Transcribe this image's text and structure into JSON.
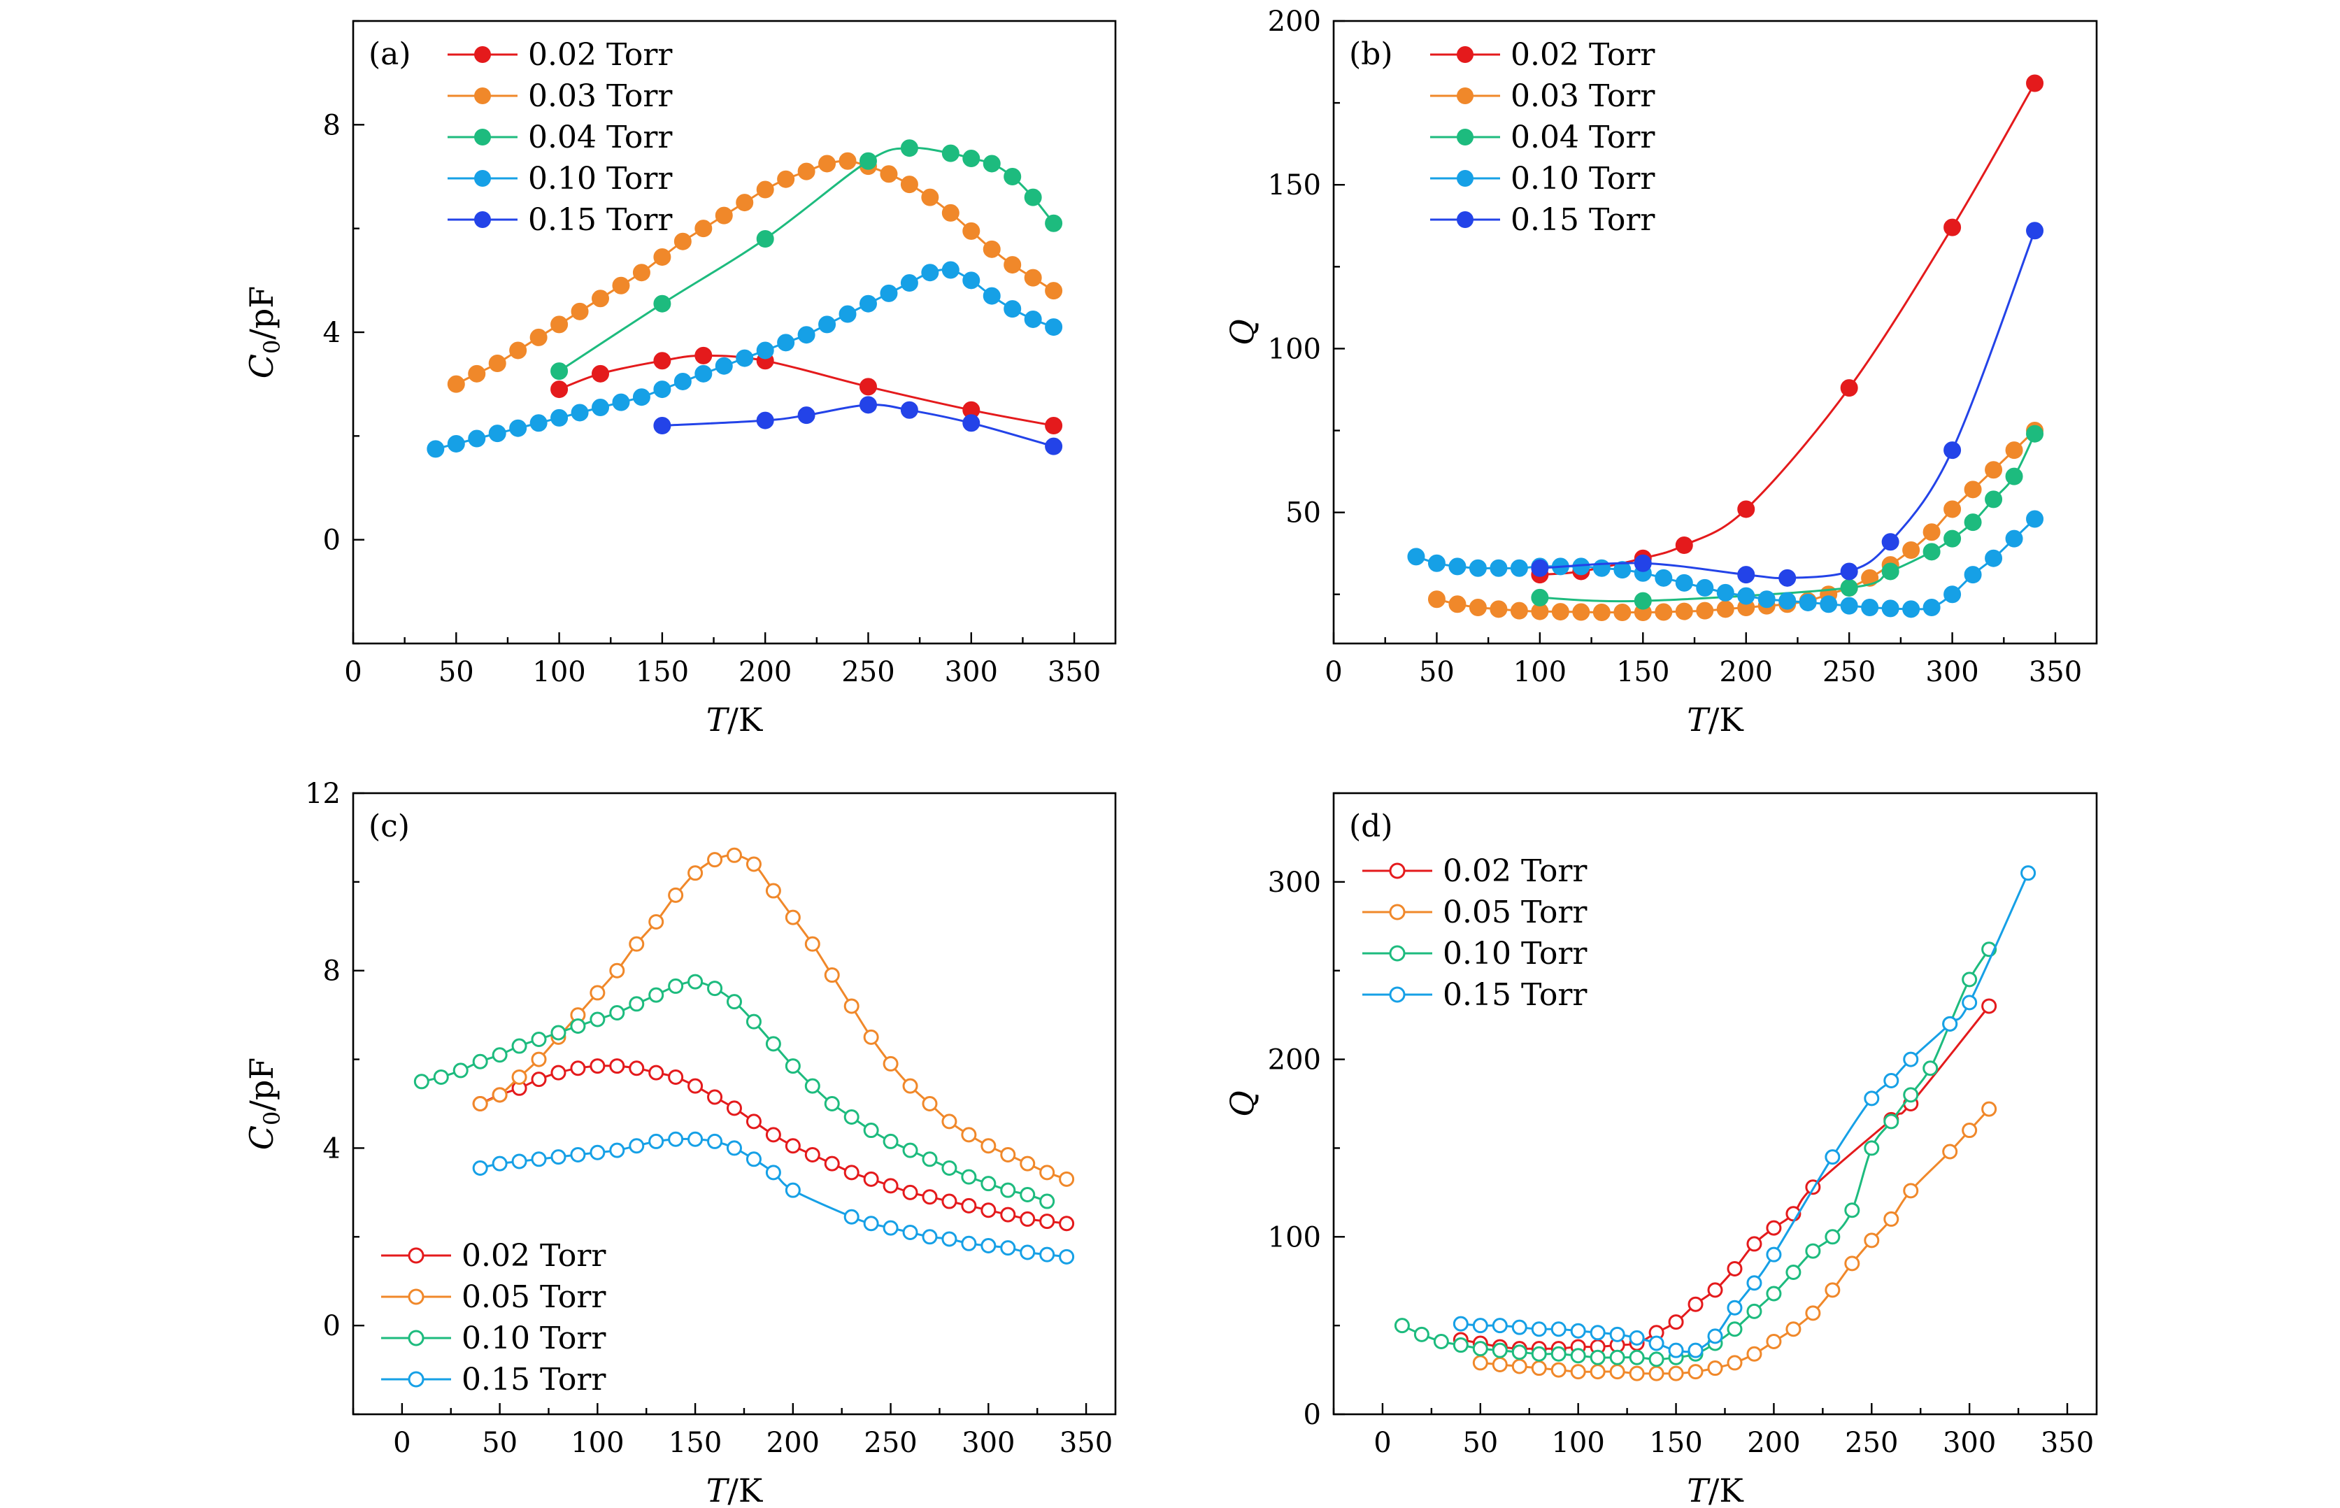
{
  "chart_data": [
    {
      "panel": "(a)",
      "type": "line",
      "marker": "filled",
      "xlabel": "T/K",
      "ylabel": "C0/pF",
      "xlim": [
        0,
        370
      ],
      "ylim": [
        -2,
        10
      ],
      "xticks": [
        0,
        50,
        100,
        150,
        200,
        250,
        300,
        350
      ],
      "yticks": [
        0,
        4,
        8
      ],
      "legend_position": "top-left",
      "series": [
        {
          "name": "0.02 Torr",
          "color": "#e41a1c",
          "x": [
            100,
            120,
            150,
            170,
            200,
            250,
            300,
            340
          ],
          "y": [
            2.9,
            3.2,
            3.45,
            3.55,
            3.45,
            2.95,
            2.5,
            2.2
          ]
        },
        {
          "name": "0.03 Torr",
          "color": "#f0882a",
          "x": [
            50,
            60,
            70,
            80,
            90,
            100,
            110,
            120,
            130,
            140,
            150,
            160,
            170,
            180,
            190,
            200,
            210,
            220,
            230,
            240,
            250,
            260,
            270,
            280,
            290,
            300,
            310,
            320,
            330,
            340
          ],
          "y": [
            3.0,
            3.2,
            3.4,
            3.65,
            3.9,
            4.15,
            4.4,
            4.65,
            4.9,
            5.15,
            5.45,
            5.75,
            6.0,
            6.25,
            6.5,
            6.75,
            6.95,
            7.1,
            7.25,
            7.3,
            7.2,
            7.05,
            6.85,
            6.6,
            6.3,
            5.95,
            5.6,
            5.3,
            5.05,
            4.8
          ]
        },
        {
          "name": "0.04 Torr",
          "color": "#1dbb7e",
          "x": [
            100,
            150,
            200,
            250,
            270,
            290,
            300,
            310,
            320,
            330,
            340
          ],
          "y": [
            3.25,
            4.55,
            5.8,
            7.3,
            7.55,
            7.45,
            7.35,
            7.25,
            7.0,
            6.6,
            6.1
          ]
        },
        {
          "name": "0.10 Torr",
          "color": "#16a0e6",
          "x": [
            40,
            50,
            60,
            70,
            80,
            90,
            100,
            110,
            120,
            130,
            140,
            150,
            160,
            170,
            180,
            190,
            200,
            210,
            220,
            230,
            240,
            250,
            260,
            270,
            280,
            290,
            300,
            310,
            320,
            330,
            340
          ],
          "y": [
            1.75,
            1.85,
            1.95,
            2.05,
            2.15,
            2.25,
            2.35,
            2.45,
            2.55,
            2.65,
            2.75,
            2.9,
            3.05,
            3.2,
            3.35,
            3.5,
            3.65,
            3.8,
            3.95,
            4.15,
            4.35,
            4.55,
            4.75,
            4.95,
            5.15,
            5.2,
            5.0,
            4.7,
            4.45,
            4.25,
            4.1
          ]
        },
        {
          "name": "0.15 Torr",
          "color": "#2343e8",
          "x": [
            150,
            200,
            220,
            250,
            270,
            300,
            340
          ],
          "y": [
            2.2,
            2.3,
            2.4,
            2.6,
            2.5,
            2.25,
            1.8
          ]
        }
      ]
    },
    {
      "panel": "(b)",
      "type": "line",
      "marker": "filled",
      "xlabel": "T/K",
      "ylabel": "Q",
      "xlim": [
        0,
        370
      ],
      "ylim": [
        10,
        200
      ],
      "xticks": [
        0,
        50,
        100,
        150,
        200,
        250,
        300,
        350
      ],
      "yticks": [
        50,
        100,
        150,
        200
      ],
      "legend_position": "top-left",
      "series": [
        {
          "name": "0.02 Torr",
          "color": "#e41a1c",
          "x": [
            100,
            120,
            150,
            170,
            200,
            250,
            300,
            340
          ],
          "y": [
            31,
            32,
            36,
            40,
            51,
            88,
            137,
            181
          ]
        },
        {
          "name": "0.03 Torr",
          "color": "#f0882a",
          "x": [
            50,
            60,
            70,
            80,
            90,
            100,
            110,
            120,
            130,
            140,
            150,
            160,
            170,
            180,
            190,
            200,
            210,
            220,
            230,
            240,
            250,
            260,
            270,
            280,
            290,
            300,
            310,
            320,
            330,
            340
          ],
          "y": [
            23.5,
            22,
            21,
            20.5,
            20,
            19.8,
            19.7,
            19.6,
            19.5,
            19.5,
            19.5,
            19.6,
            19.8,
            20,
            20.5,
            21,
            21.5,
            22,
            23,
            25,
            27,
            30,
            34,
            38.5,
            44,
            51,
            57,
            63,
            69,
            75
          ]
        },
        {
          "name": "0.04 Torr",
          "color": "#1dbb7e",
          "x": [
            100,
            150,
            250,
            270,
            290,
            300,
            310,
            320,
            330,
            340
          ],
          "y": [
            24,
            23,
            27,
            32,
            38,
            42,
            47,
            54,
            61,
            74
          ]
        },
        {
          "name": "0.10 Torr",
          "color": "#16a0e6",
          "x": [
            40,
            50,
            60,
            70,
            80,
            90,
            100,
            110,
            120,
            130,
            140,
            150,
            160,
            170,
            180,
            190,
            200,
            210,
            220,
            230,
            240,
            250,
            260,
            270,
            280,
            290,
            300,
            310,
            320,
            330,
            340
          ],
          "y": [
            36.5,
            34.5,
            33.5,
            33,
            33,
            33,
            33.5,
            33.5,
            33.5,
            33,
            32.5,
            31.5,
            30,
            28.5,
            27,
            25.5,
            24.5,
            23.5,
            23,
            22.5,
            22,
            21.5,
            21,
            20.7,
            20.5,
            21,
            25,
            31,
            36,
            42,
            48
          ]
        },
        {
          "name": "0.15 Torr",
          "color": "#2343e8",
          "x": [
            100,
            150,
            200,
            220,
            250,
            270,
            300,
            340
          ],
          "y": [
            33,
            34.5,
            31,
            30,
            32,
            41,
            69,
            136
          ]
        }
      ]
    },
    {
      "panel": "(c)",
      "type": "line",
      "marker": "open",
      "xlabel": "T/K",
      "ylabel": "C0/pF",
      "xlim": [
        -25,
        365
      ],
      "ylim": [
        -2,
        12
      ],
      "xticks": [
        0,
        50,
        100,
        150,
        200,
        250,
        300,
        350
      ],
      "yticks": [
        0,
        4,
        8,
        12
      ],
      "legend_position": "bottom-left",
      "series": [
        {
          "name": "0.02 Torr",
          "color": "#e41a1c",
          "x": [
            40,
            50,
            60,
            70,
            80,
            90,
            100,
            110,
            120,
            130,
            140,
            150,
            160,
            170,
            180,
            190,
            200,
            210,
            220,
            230,
            240,
            250,
            260,
            270,
            280,
            290,
            300,
            310,
            320,
            330,
            340
          ],
          "y": [
            5.0,
            5.2,
            5.35,
            5.55,
            5.7,
            5.8,
            5.85,
            5.85,
            5.8,
            5.7,
            5.6,
            5.4,
            5.15,
            4.9,
            4.6,
            4.3,
            4.05,
            3.85,
            3.65,
            3.45,
            3.3,
            3.15,
            3.0,
            2.9,
            2.8,
            2.7,
            2.6,
            2.5,
            2.4,
            2.35,
            2.3
          ]
        },
        {
          "name": "0.05 Torr",
          "color": "#f0882a",
          "x": [
            40,
            50,
            60,
            70,
            80,
            90,
            100,
            110,
            120,
            130,
            140,
            150,
            160,
            170,
            180,
            190,
            200,
            210,
            220,
            230,
            240,
            250,
            260,
            270,
            280,
            290,
            300,
            310,
            320,
            330,
            340
          ],
          "y": [
            5.0,
            5.2,
            5.6,
            6.0,
            6.5,
            7.0,
            7.5,
            8.0,
            8.6,
            9.1,
            9.7,
            10.2,
            10.5,
            10.6,
            10.4,
            9.8,
            9.2,
            8.6,
            7.9,
            7.2,
            6.5,
            5.9,
            5.4,
            5.0,
            4.6,
            4.3,
            4.05,
            3.85,
            3.65,
            3.45,
            3.3
          ]
        },
        {
          "name": "0.10 Torr",
          "color": "#1dbb7e",
          "x": [
            10,
            20,
            30,
            40,
            50,
            60,
            70,
            80,
            90,
            100,
            110,
            120,
            130,
            140,
            150,
            160,
            170,
            180,
            190,
            200,
            210,
            220,
            230,
            240,
            250,
            260,
            270,
            280,
            290,
            300,
            310,
            320,
            330
          ],
          "y": [
            5.5,
            5.6,
            5.75,
            5.95,
            6.1,
            6.3,
            6.45,
            6.6,
            6.75,
            6.9,
            7.05,
            7.25,
            7.45,
            7.65,
            7.75,
            7.6,
            7.3,
            6.85,
            6.35,
            5.85,
            5.4,
            5.0,
            4.7,
            4.4,
            4.15,
            3.95,
            3.75,
            3.55,
            3.35,
            3.2,
            3.05,
            2.95,
            2.8
          ]
        },
        {
          "name": "0.15 Torr",
          "color": "#16a0e6",
          "x": [
            40,
            50,
            60,
            70,
            80,
            90,
            100,
            110,
            120,
            130,
            140,
            150,
            160,
            170,
            180,
            190,
            200,
            230,
            240,
            250,
            260,
            270,
            280,
            290,
            300,
            310,
            320,
            330,
            340
          ],
          "y": [
            3.55,
            3.65,
            3.7,
            3.75,
            3.8,
            3.85,
            3.9,
            3.95,
            4.05,
            4.15,
            4.2,
            4.2,
            4.15,
            4.0,
            3.75,
            3.45,
            3.05,
            2.45,
            2.3,
            2.2,
            2.1,
            2.0,
            1.95,
            1.85,
            1.8,
            1.75,
            1.65,
            1.6,
            1.55
          ]
        }
      ]
    },
    {
      "panel": "(d)",
      "type": "line",
      "marker": "open",
      "xlabel": "T/K",
      "ylabel": "Q",
      "xlim": [
        -25,
        365
      ],
      "ylim": [
        0,
        350
      ],
      "xticks": [
        0,
        50,
        100,
        150,
        200,
        250,
        300,
        350
      ],
      "yticks": [
        0,
        100,
        200,
        300
      ],
      "legend_position": "top-left",
      "series": [
        {
          "name": "0.02 Torr",
          "color": "#e41a1c",
          "x": [
            40,
            50,
            60,
            70,
            80,
            90,
            100,
            110,
            120,
            130,
            140,
            150,
            160,
            170,
            180,
            190,
            200,
            210,
            220,
            260,
            270,
            310
          ],
          "y": [
            42,
            40,
            38,
            37,
            37,
            37,
            38,
            38,
            39,
            40,
            46,
            52,
            62,
            70,
            82,
            96,
            105,
            113,
            128,
            166,
            175,
            230
          ]
        },
        {
          "name": "0.05 Torr",
          "color": "#f0882a",
          "x": [
            50,
            60,
            70,
            80,
            90,
            100,
            110,
            120,
            130,
            140,
            150,
            160,
            170,
            180,
            190,
            200,
            210,
            220,
            230,
            240,
            250,
            260,
            270,
            290,
            300,
            310
          ],
          "y": [
            29,
            28,
            27,
            26,
            25,
            24,
            24,
            24,
            23,
            23,
            23,
            24,
            26,
            29,
            34,
            41,
            48,
            57,
            70,
            85,
            98,
            110,
            126,
            148,
            160,
            172
          ]
        },
        {
          "name": "0.10 Torr",
          "color": "#1dbb7e",
          "x": [
            10,
            20,
            30,
            40,
            50,
            60,
            70,
            80,
            90,
            100,
            110,
            120,
            130,
            140,
            150,
            160,
            170,
            180,
            190,
            200,
            210,
            220,
            230,
            240,
            250,
            260,
            270,
            280,
            290,
            300,
            310
          ],
          "y": [
            50,
            45,
            41,
            39,
            37,
            36,
            35,
            34,
            34,
            33,
            32,
            32,
            32,
            31,
            32,
            34,
            40,
            48,
            58,
            68,
            80,
            92,
            100,
            115,
            150,
            165,
            180,
            195,
            220,
            245,
            262
          ]
        },
        {
          "name": "0.15 Torr",
          "color": "#16a0e6",
          "x": [
            40,
            50,
            60,
            70,
            80,
            90,
            100,
            110,
            120,
            130,
            140,
            150,
            160,
            170,
            180,
            190,
            200,
            230,
            250,
            260,
            270,
            290,
            300,
            330
          ],
          "y": [
            51,
            50,
            50,
            49,
            48,
            48,
            47,
            46,
            45,
            43,
            40,
            36,
            36,
            44,
            60,
            74,
            90,
            145,
            178,
            188,
            200,
            220,
            232,
            305
          ]
        }
      ]
    }
  ]
}
